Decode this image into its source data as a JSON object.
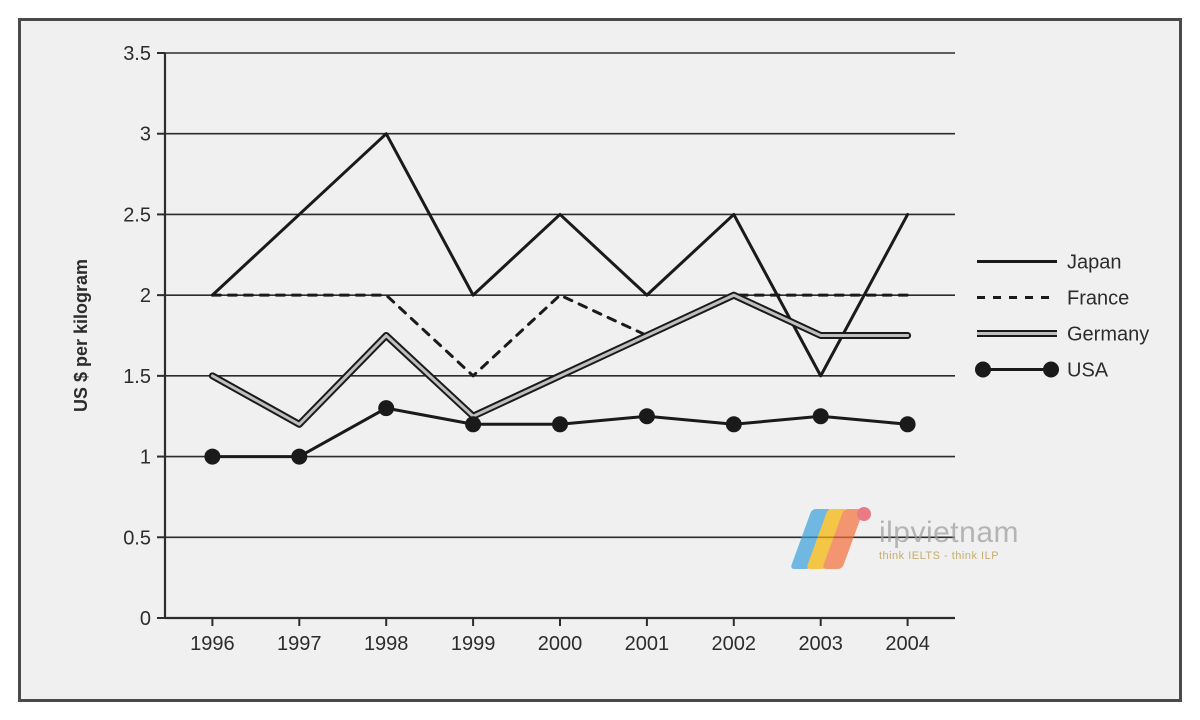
{
  "chart": {
    "type": "line",
    "background_color": "#f0f0f0",
    "plot_background": "#f0f0f0",
    "border_color": "#4a4a4a",
    "axis_color": "#2c2c2c",
    "grid_color": "#2c2c2c",
    "text_color": "#2c2c2c",
    "tick_font_size": 20,
    "ylabel": "US $ per kilogram",
    "ylabel_font_size": 18,
    "ylabel_font_weight": "bold",
    "ylim": [
      0,
      3.5
    ],
    "ytick_step": 0.5,
    "yticks": [
      0,
      0.5,
      1,
      1.5,
      2,
      2.5,
      3,
      3.5
    ],
    "ylabels": [
      "0",
      "0.5",
      "1",
      "1.5",
      "2",
      "2.5",
      "3",
      "3.5"
    ],
    "categories": [
      "1996",
      "1997",
      "1998",
      "1999",
      "2000",
      "2001",
      "2002",
      "2003",
      "2004"
    ],
    "series": [
      {
        "name": "Japan",
        "color": "#1a1a1a",
        "line_width": 3,
        "dash": "solid",
        "marker": "none",
        "values": [
          2.0,
          2.5,
          3.0,
          2.0,
          2.5,
          2.0,
          2.5,
          1.5,
          2.5
        ]
      },
      {
        "name": "France",
        "color": "#1a1a1a",
        "line_width": 3,
        "dash": "8,8",
        "marker": "none",
        "values": [
          2.0,
          2.0,
          2.0,
          1.5,
          2.0,
          1.75,
          2.0,
          2.0,
          2.0
        ]
      },
      {
        "name": "Germany",
        "color_outer": "#1a1a1a",
        "color_inner": "#bfbfbf",
        "line_width_outer": 7,
        "line_width_inner": 3,
        "dash": "solid",
        "marker": "none",
        "values": [
          1.5,
          1.2,
          1.75,
          1.25,
          1.5,
          1.75,
          2.0,
          1.75,
          1.75
        ]
      },
      {
        "name": "USA",
        "color": "#1a1a1a",
        "line_width": 3,
        "dash": "solid",
        "marker": "circle",
        "marker_size": 8,
        "marker_fill": "#1a1a1a",
        "values": [
          1.0,
          1.0,
          1.3,
          1.2,
          1.2,
          1.25,
          1.2,
          1.25,
          1.2
        ]
      }
    ],
    "legend": {
      "position": "right",
      "font_size": 20,
      "item_gap": 36,
      "sample_line_length": 80
    }
  },
  "watermark": {
    "main": "ilpvietnam",
    "sub": "think IELTS - think ILP",
    "logo_colors": [
      "#3aa0dd",
      "#f7b500",
      "#f36f3a",
      "#e84b5a"
    ]
  }
}
